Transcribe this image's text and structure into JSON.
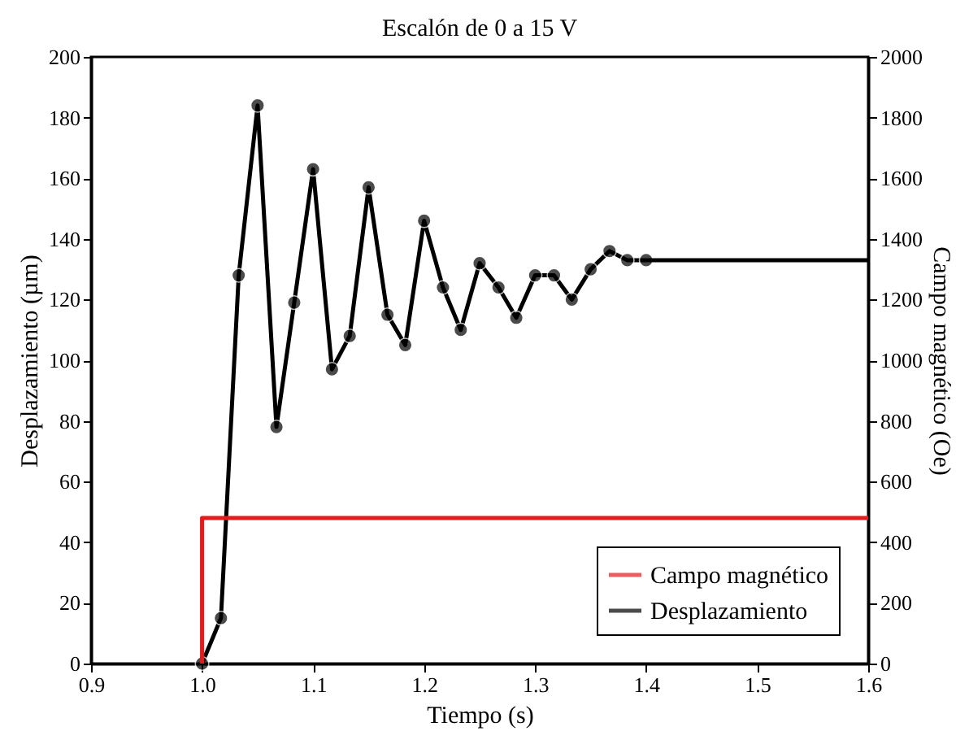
{
  "chart_data": {
    "type": "line",
    "title": "Escalón de 0 a 15 V",
    "xlabel": "Tiempo (s)",
    "ylabel": "Desplazamiento (µm)",
    "y2label": "Campo magnético (Oe)",
    "xlim": [
      0.9,
      1.6
    ],
    "xticks": [
      0.9,
      {
        "value": 1.0,
        "label": "1.0"
      },
      1.1,
      1.2,
      1.3,
      1.4,
      1.5,
      1.6
    ],
    "ylim": [
      0,
      200
    ],
    "yticks": [
      0,
      20,
      40,
      60,
      80,
      100,
      120,
      140,
      160,
      180,
      200
    ],
    "y2lim": [
      0,
      2000
    ],
    "y2ticks": [
      0,
      200,
      400,
      600,
      800,
      1000,
      1200,
      1400,
      1600,
      1800,
      2000
    ],
    "grid": false,
    "legend": "bottom right",
    "series": [
      {
        "name": "Campo magnético",
        "color": "#e41a1c",
        "axis": "y2",
        "marker": "none",
        "x": [
          1.0,
          1.0,
          1.6
        ],
        "values": [
          0,
          480,
          480
        ]
      },
      {
        "name": "Desplazamiento",
        "color": "#000000",
        "axis": "y",
        "marker": "circle",
        "x": [
          1.0,
          1.017,
          1.033,
          1.05,
          1.067,
          1.083,
          1.1,
          1.117,
          1.133,
          1.15,
          1.167,
          1.183,
          1.2,
          1.217,
          1.233,
          1.25,
          1.267,
          1.283,
          1.3,
          1.317,
          1.333,
          1.35,
          1.367,
          1.383,
          1.4
        ],
        "values": [
          0,
          15,
          128,
          184,
          78,
          119,
          163,
          97,
          108,
          157,
          115,
          105,
          146,
          124,
          110,
          132,
          124,
          114,
          128,
          128,
          120,
          130,
          136,
          133,
          133
        ]
      },
      {
        "color": "#000000",
        "axis": "y",
        "marker": "none",
        "x": [
          1.4,
          1.6
        ],
        "values": [
          133,
          133
        ]
      }
    ]
  }
}
